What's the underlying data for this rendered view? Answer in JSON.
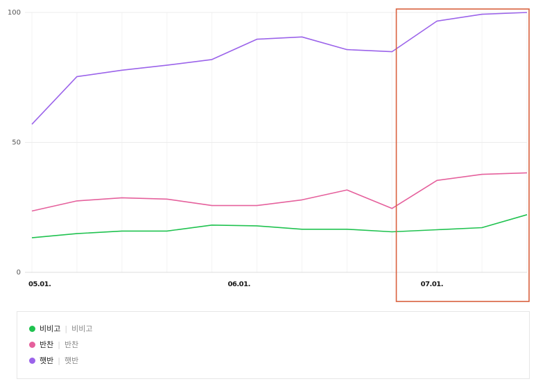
{
  "chart_data": {
    "type": "line",
    "x": [
      "2024-05-01",
      "2024-05-08",
      "2024-05-15",
      "2024-05-22",
      "2024-05-29",
      "2024-06-05",
      "2024-06-12",
      "2024-06-19",
      "2024-06-26",
      "2024-07-03",
      "2024-07-10",
      "2024-07-17"
    ],
    "x_tick_labels": [
      {
        "x": "2024-05-01",
        "label": "05.01."
      },
      {
        "x": "2024-06-01",
        "label": "06.01."
      },
      {
        "x": "2024-07-01",
        "label": "07.01."
      }
    ],
    "y_ticks": [
      0,
      50,
      100
    ],
    "ylim": [
      0,
      100
    ],
    "grid": true,
    "series": [
      {
        "name": "비비고",
        "sub": "비비고",
        "color": "#1fc24f",
        "values": [
          13.3,
          14.9,
          15.9,
          15.9,
          18.2,
          17.9,
          16.6,
          16.6,
          15.6,
          16.4,
          17.2,
          22.2
        ]
      },
      {
        "name": "반찬",
        "sub": "반찬",
        "color": "#e5609c",
        "values": [
          23.6,
          27.5,
          28.7,
          28.2,
          25.7,
          25.7,
          27.9,
          31.7,
          24.6,
          35.4,
          37.7,
          38.3
        ]
      },
      {
        "name": "햇반",
        "sub": "햇반",
        "color": "#9b63ea",
        "values": [
          57.0,
          75.3,
          77.8,
          79.7,
          81.9,
          89.7,
          90.6,
          85.7,
          84.9,
          96.7,
          99.3,
          100
        ]
      }
    ],
    "highlight": {
      "from": "2024-06-27",
      "to": "2024-07-17",
      "color": "#d9603e"
    },
    "legend": "bottom"
  }
}
